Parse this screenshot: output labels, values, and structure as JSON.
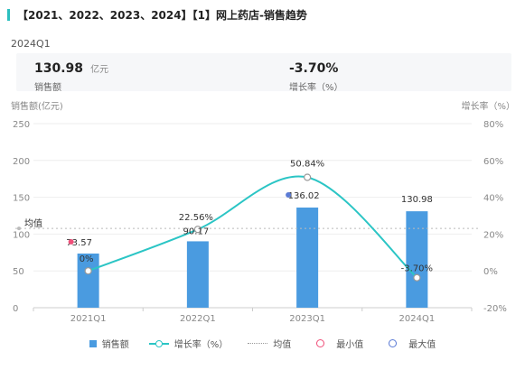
{
  "title": "【2021、2022、2023、2024】【1】网上药店-销售趋势",
  "period": "2024Q1",
  "kpis": {
    "sales": {
      "value": "130.98",
      "unit": "亿元",
      "label": "销售额"
    },
    "growth": {
      "value": "-3.70%",
      "label": "增长率（%）"
    }
  },
  "colors": {
    "accent": "#2bbfbf",
    "bar": "#4a9be0",
    "line": "#2bc5c5",
    "min": "#f0507a",
    "max": "#5b7bd5"
  },
  "chart_data": {
    "type": "bar",
    "categories": [
      "2021Q1",
      "2022Q1",
      "2023Q1",
      "2024Q1"
    ],
    "series": [
      {
        "name": "销售额",
        "type": "bar",
        "axis": "left",
        "values": [
          73.57,
          90.17,
          136.02,
          130.98
        ],
        "labels": [
          "73.57",
          "90.17",
          "136.02",
          "130.98"
        ]
      },
      {
        "name": "增长率（%）",
        "type": "line",
        "axis": "right",
        "smooth": true,
        "values": [
          0,
          22.56,
          50.84,
          -3.7
        ],
        "labels": [
          "0%",
          "22.56%",
          "50.84%",
          "-3.70%"
        ]
      }
    ],
    "y_left": {
      "label": "销售额(亿元)",
      "range": [
        0,
        250
      ],
      "ticks": [
        "0",
        "50",
        "100",
        "150",
        "200",
        "250"
      ]
    },
    "y_right": {
      "label": "增长率（%）",
      "range": [
        -20,
        80
      ],
      "ticks": [
        "-20%",
        "0%",
        "20%",
        "40%",
        "60%",
        "80%"
      ]
    },
    "average": {
      "label": "均值",
      "value": 107.69
    },
    "min_marker": {
      "category": "2021Q1",
      "value": 73.57
    },
    "max_marker": {
      "category": "2023Q1",
      "value": 136.02
    },
    "grid": true,
    "legend": {
      "placement": "bottom",
      "items": [
        "销售额",
        "增长率（%）",
        "均值",
        "最小值",
        "最大值"
      ]
    }
  }
}
